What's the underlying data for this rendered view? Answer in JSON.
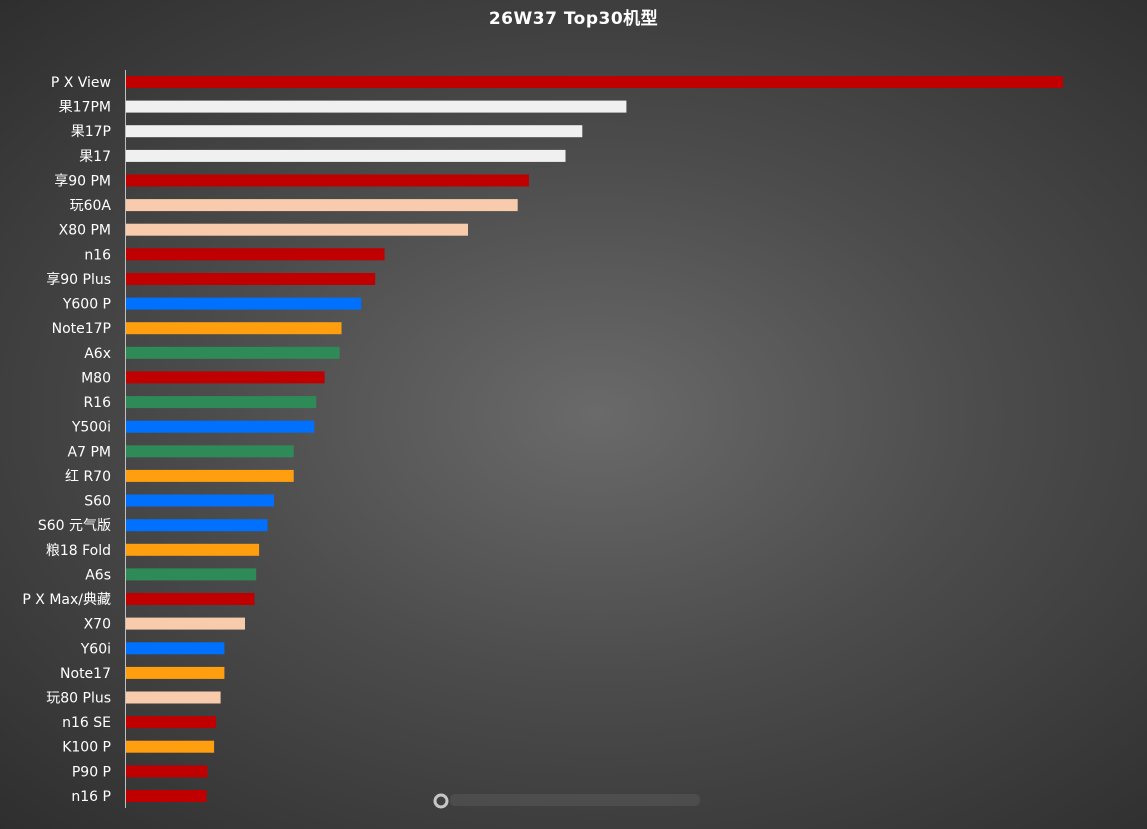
{
  "colors": {
    "huawei": "#c00000",
    "apple": "#f0f0f0",
    "vivo": "#f8cbad",
    "honor": "#0070ff",
    "xiaomi": "#ff9f10",
    "oppo": "#2e8b57",
    "axis": "#bfbfbf"
  },
  "chart_data": {
    "type": "bar",
    "orientation": "horizontal",
    "title": "26W37 Top30机型",
    "xlabel": "",
    "ylabel": "",
    "xlim": [
      0,
      100
    ],
    "grid": false,
    "legend": "none",
    "categories": [
      "P X View",
      "果17PM",
      "果17P",
      "果17",
      "享90 PM",
      "玩60A",
      "X80 PM",
      "n16",
      "享90 Plus",
      "Y600 P",
      "Note17P",
      "A6x",
      "M80",
      "R16",
      "Y500i",
      "A7 PM",
      "红 R70",
      "S60",
      "S60 元气版",
      "粮18 Fold",
      "A6s",
      "P X Max/典藏",
      "X70",
      "Y60i",
      "Note17",
      "玩80 Plus",
      "n16 SE",
      "K100 P",
      "P90 P",
      "n16 P"
    ],
    "values": [
      100,
      53.4,
      48.7,
      46.9,
      43.0,
      41.8,
      36.5,
      27.6,
      26.6,
      25.1,
      23.0,
      22.8,
      21.2,
      20.3,
      20.1,
      17.9,
      17.9,
      15.8,
      15.1,
      14.2,
      13.9,
      13.7,
      12.7,
      10.5,
      10.5,
      10.1,
      9.6,
      9.4,
      8.7,
      8.6
    ],
    "bar_colors": [
      "#c00000",
      "#f0f0f0",
      "#f0f0f0",
      "#f0f0f0",
      "#c00000",
      "#f8cbad",
      "#f8cbad",
      "#c00000",
      "#c00000",
      "#0070ff",
      "#ff9f10",
      "#2e8b57",
      "#c00000",
      "#2e8b57",
      "#0070ff",
      "#2e8b57",
      "#ff9f10",
      "#0070ff",
      "#0070ff",
      "#ff9f10",
      "#2e8b57",
      "#c00000",
      "#f8cbad",
      "#0070ff",
      "#ff9f10",
      "#f8cbad",
      "#c00000",
      "#ff9f10",
      "#c00000",
      "#c00000"
    ]
  }
}
